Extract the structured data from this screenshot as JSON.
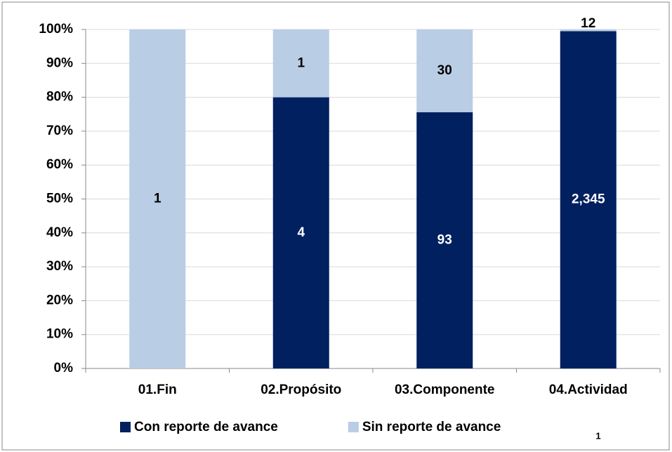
{
  "chart_data": {
    "type": "bar",
    "stacking": "percent",
    "categories": [
      "01.Fin",
      "02.Propósito",
      "03.Componente",
      "04.Actividad"
    ],
    "series": [
      {
        "name": "Con reporte de avance",
        "color": "#002060",
        "label_color": "#ffffff",
        "values": [
          null,
          4,
          93,
          2345
        ],
        "value_labels": [
          null,
          null,
          null,
          "2,345"
        ]
      },
      {
        "name": "Sin reporte de avance",
        "color": "#b9cde5",
        "label_color": "#000000",
        "values": [
          1,
          1,
          30,
          12
        ]
      }
    ],
    "ylim": [
      0,
      100
    ],
    "yticks": [
      {
        "value": 0,
        "label": "0%"
      },
      {
        "value": 10,
        "label": "10%"
      },
      {
        "value": 20,
        "label": "20%"
      },
      {
        "value": 30,
        "label": "30%"
      },
      {
        "value": 40,
        "label": "40%"
      },
      {
        "value": 50,
        "label": "50%"
      },
      {
        "value": 60,
        "label": "60%"
      },
      {
        "value": 70,
        "label": "70%"
      },
      {
        "value": 80,
        "label": "80%"
      },
      {
        "value": 90,
        "label": "90%"
      },
      {
        "value": 100,
        "label": "100%"
      }
    ],
    "grid": true,
    "legend": "bottom",
    "footnote": "1"
  }
}
